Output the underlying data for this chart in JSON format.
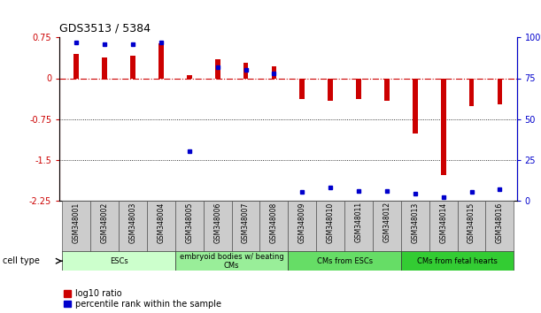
{
  "title": "GDS3513 / 5384",
  "samples": [
    "GSM348001",
    "GSM348002",
    "GSM348003",
    "GSM348004",
    "GSM348005",
    "GSM348006",
    "GSM348007",
    "GSM348008",
    "GSM348009",
    "GSM348010",
    "GSM348011",
    "GSM348012",
    "GSM348013",
    "GSM348014",
    "GSM348015",
    "GSM348016"
  ],
  "log10_ratio": [
    0.45,
    0.38,
    0.42,
    0.65,
    0.05,
    0.35,
    0.28,
    0.22,
    -0.38,
    -0.42,
    -0.38,
    -0.42,
    -1.02,
    -1.78,
    -0.52,
    -0.48
  ],
  "percentile_rank": [
    97,
    96,
    96,
    97,
    30,
    82,
    80,
    78,
    5,
    8,
    6,
    6,
    4,
    2,
    5,
    7
  ],
  "cell_type_groups": [
    {
      "label": "ESCs",
      "start": 0,
      "end": 3,
      "color": "#ccffcc"
    },
    {
      "label": "embryoid bodies w/ beating\nCMs",
      "start": 4,
      "end": 7,
      "color": "#99ee99"
    },
    {
      "label": "CMs from ESCs",
      "start": 8,
      "end": 11,
      "color": "#66dd66"
    },
    {
      "label": "CMs from fetal hearts",
      "start": 12,
      "end": 15,
      "color": "#33cc33"
    }
  ],
  "bar_color_red": "#cc0000",
  "bar_color_blue": "#0000cc",
  "ylim_left": [
    -2.25,
    0.75
  ],
  "ylim_right": [
    0,
    100
  ],
  "yticks_left": [
    0.75,
    0,
    -0.75,
    -1.5,
    -2.25
  ],
  "yticks_right": [
    100,
    75,
    50,
    25,
    0
  ],
  "dotted_lines": [
    -0.75,
    -1.5
  ],
  "bg_color": "#ffffff",
  "bar_width": 0.18
}
